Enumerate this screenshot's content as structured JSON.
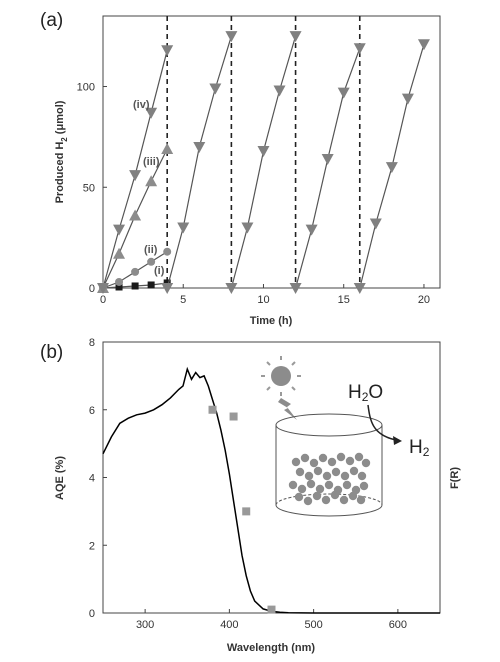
{
  "chart_data": [
    {
      "type": "scatter",
      "panel_label": "(a)",
      "xlabel": "Time (h)",
      "ylabel": "Produced H",
      "ylabel_sub": "2",
      "ylabel_unit": " (μmol)",
      "xlim": [
        0,
        21
      ],
      "ylim": [
        0,
        135
      ],
      "xticks": [
        "0",
        "5",
        "10",
        "15",
        "20"
      ],
      "yticks": [
        "0",
        "50",
        "100"
      ],
      "cycle_markers_x": [
        4,
        8,
        12,
        16
      ],
      "colors": {
        "black": "#1a1a1a",
        "gray": "#8c8c8c",
        "line": "#555555"
      },
      "series": [
        {
          "label": "(i)",
          "marker": "square",
          "color": "#1a1a1a",
          "x": [
            0,
            1,
            2,
            3,
            4
          ],
          "y": [
            0,
            0.5,
            1,
            1.5,
            2.5
          ]
        },
        {
          "label": "(ii)",
          "marker": "circle",
          "color": "#8c8c8c",
          "x": [
            0,
            1,
            2,
            3,
            4
          ],
          "y": [
            0,
            3,
            8,
            13,
            18
          ]
        },
        {
          "label": "(iii)",
          "marker": "triangle-up",
          "color": "#8c8c8c",
          "x": [
            0,
            1,
            2,
            3,
            4
          ],
          "y": [
            0,
            17,
            36,
            53,
            69
          ]
        },
        {
          "label": "(iv)",
          "marker": "triangle-down",
          "color": "#808080",
          "x": [
            0,
            1,
            2,
            3,
            4,
            4,
            5,
            6,
            7,
            8,
            8,
            9,
            10,
            11,
            12,
            12,
            13,
            14,
            15,
            16,
            16,
            17,
            18,
            19,
            20
          ],
          "y": [
            0,
            29,
            56,
            87,
            118,
            0,
            30,
            70,
            99,
            125,
            0,
            30,
            68,
            98,
            125,
            0,
            29,
            64,
            97,
            119,
            0,
            32,
            60,
            94,
            121
          ]
        }
      ]
    },
    {
      "type": "line",
      "panel_label": "(b)",
      "xlabel": "Wavelength (nm)",
      "ylabel": "AQE (%)",
      "ylabel_right": "F(R)",
      "xlim": [
        250,
        650
      ],
      "ylim": [
        0,
        8
      ],
      "xticks": [
        "300",
        "400",
        "500",
        "600"
      ],
      "yticks": [
        "0",
        "2",
        "4",
        "6",
        "8"
      ],
      "colors": {
        "line": "#000000",
        "points": "#999999"
      },
      "series": [
        {
          "marker": "line",
          "x": [
            250,
            260,
            270,
            280,
            290,
            300,
            310,
            320,
            330,
            340,
            345,
            350,
            355,
            360,
            365,
            370,
            375,
            380,
            385,
            390,
            395,
            400,
            405,
            410,
            415,
            420,
            425,
            430,
            440,
            450,
            460,
            470,
            500,
            550,
            600,
            650
          ],
          "y": [
            4.7,
            5.2,
            5.6,
            5.75,
            5.85,
            5.9,
            6.0,
            6.15,
            6.35,
            6.6,
            6.7,
            7.2,
            6.9,
            7.1,
            6.95,
            7.0,
            6.7,
            6.3,
            5.9,
            5.4,
            4.8,
            4.1,
            3.3,
            2.5,
            1.7,
            1.1,
            0.65,
            0.35,
            0.12,
            0.05,
            0.02,
            0.01,
            0,
            0,
            0,
            0
          ]
        },
        {
          "marker": "square",
          "x": [
            380,
            405,
            420,
            450
          ],
          "y": [
            6.0,
            5.8,
            3.0,
            0.1
          ]
        }
      ],
      "inset": {
        "molecule": "H",
        "molecule_sub": "2",
        "molecule_tail": "O",
        "product": "H",
        "product_sub": "2"
      }
    }
  ]
}
